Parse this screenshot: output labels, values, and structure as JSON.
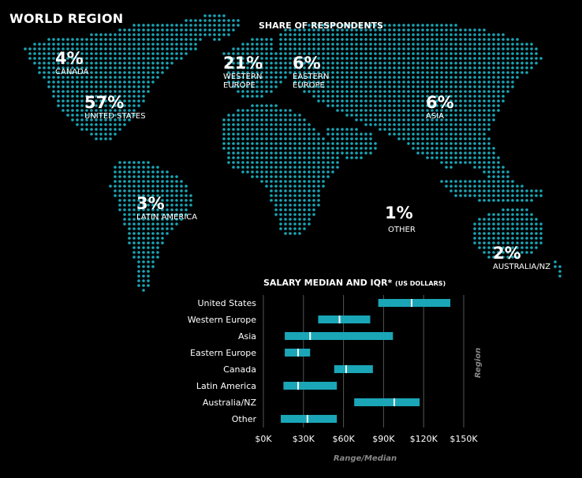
{
  "header": {
    "title": "WORLD REGION",
    "share_title": "SHARE OF RESPONDENTS"
  },
  "map_stats": [
    {
      "pct": "4%",
      "label": "CANADA"
    },
    {
      "pct": "57%",
      "label": "UNITED STATES"
    },
    {
      "pct": "21%",
      "label": "WESTERN\nEUROPE"
    },
    {
      "pct": "6%",
      "label": "EASTERN\nEUROPE"
    },
    {
      "pct": "6%",
      "label": "ASIA"
    },
    {
      "pct": "3%",
      "label": "LATIN AMERICA"
    },
    {
      "pct": "1%",
      "label": "OTHER"
    },
    {
      "pct": "2%",
      "label": "AUSTRALIA/NZ"
    }
  ],
  "colors": {
    "accent": "#1aa6b7",
    "background": "#000000",
    "median": "#ffffff",
    "grid": "#555555"
  },
  "chart_data": {
    "type": "bar",
    "title": "SALARY MEDIAN AND IQR*",
    "title_unit": "(US DOLLARS)",
    "xlabel": "Range/Median",
    "ylabel": "Region",
    "xlim": [
      0,
      150000
    ],
    "x_ticks": [
      0,
      30000,
      60000,
      90000,
      120000,
      150000
    ],
    "x_tick_labels": [
      "$0K",
      "$30K",
      "$60K",
      "$90K",
      "$120K",
      "$150K"
    ],
    "categories": [
      "United States",
      "Western Europe",
      "Asia",
      "Eastern Europe",
      "Canada",
      "Latin America",
      "Australia/NZ",
      "Other"
    ],
    "series": [
      {
        "low": 86000,
        "high": 140000,
        "median": 111000
      },
      {
        "low": 41000,
        "high": 80000,
        "median": 57000
      },
      {
        "low": 16000,
        "high": 97000,
        "median": 35000
      },
      {
        "low": 16000,
        "high": 35000,
        "median": 26000
      },
      {
        "low": 53000,
        "high": 82000,
        "median": 62000
      },
      {
        "low": 15000,
        "high": 55000,
        "median": 26000
      },
      {
        "low": 68000,
        "high": 117000,
        "median": 98000
      },
      {
        "low": 13000,
        "high": 55000,
        "median": 33000
      }
    ],
    "grid": true
  }
}
